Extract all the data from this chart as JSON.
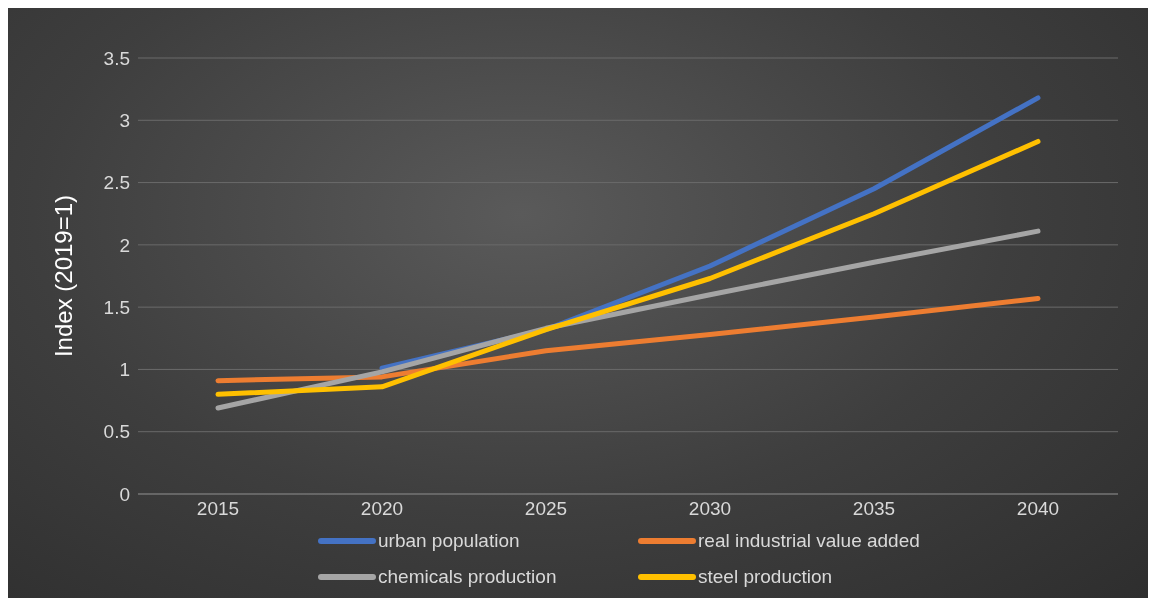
{
  "chart_data": {
    "type": "line",
    "ylabel": "Index (2019=1)",
    "categories": [
      "2015",
      "2020",
      "2025",
      "2030",
      "2035",
      "2040"
    ],
    "series": [
      {
        "name": "urban population",
        "color": "#4472c4",
        "values": [
          null,
          1.01,
          1.32,
          1.83,
          2.45,
          3.18
        ]
      },
      {
        "name": "real industrial value added",
        "color": "#ed7d31",
        "values": [
          0.91,
          0.94,
          1.15,
          1.28,
          1.42,
          1.57
        ]
      },
      {
        "name": "chemicals production",
        "color": "#a5a5a5",
        "values": [
          0.69,
          0.98,
          1.33,
          1.6,
          1.86,
          2.11
        ]
      },
      {
        "name": "steel production",
        "color": "#ffc000",
        "values": [
          0.8,
          0.86,
          1.32,
          1.73,
          2.25,
          2.83
        ]
      }
    ],
    "ylim": [
      0,
      3.5
    ],
    "yticks": [
      0,
      0.5,
      1,
      1.5,
      2,
      2.5,
      3,
      3.5
    ],
    "grid": "y",
    "legend": "bottom",
    "marker": "none",
    "line_style": "solid"
  }
}
